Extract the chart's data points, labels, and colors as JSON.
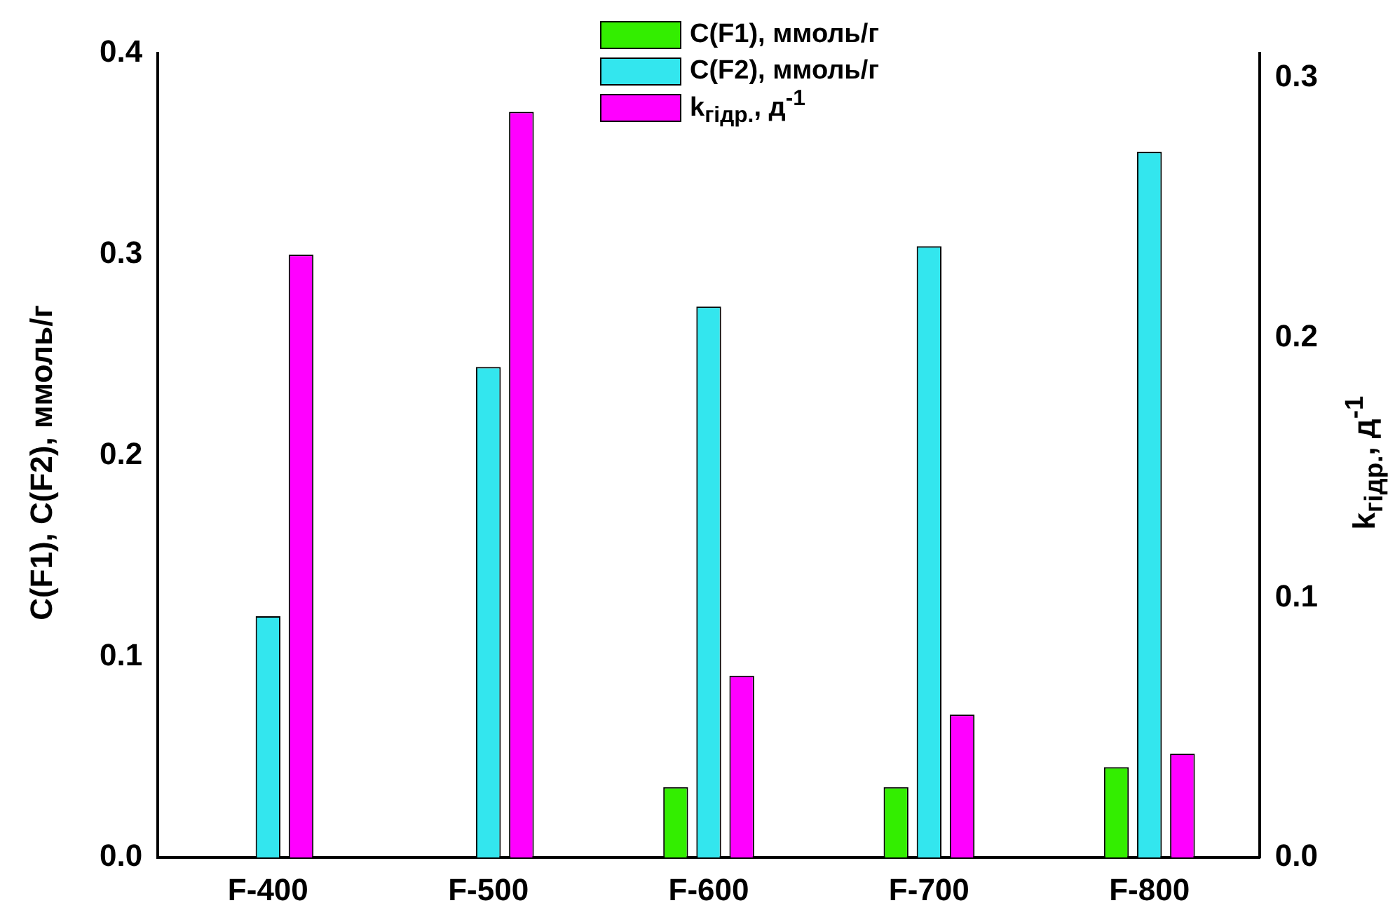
{
  "chart_data": {
    "type": "bar",
    "ylabel": "C(F1), C(F2), ммоль/г",
    "y2label": "k$_{гідр.}$, д$^{-1}$",
    "categories": [
      "F-400",
      "F-500",
      "F-600",
      "F-700",
      "F-800"
    ],
    "series": [
      {
        "name": "C(F1), ммоль/г",
        "color": "#33ee00",
        "values": [
          null,
          null,
          0.035,
          0.035,
          0.045
        ]
      },
      {
        "name": "C(F2), ммоль/г",
        "color": "#33e6ee",
        "values": [
          0.12,
          0.244,
          0.274,
          0.304,
          0.351
        ]
      },
      {
        "name": "k$_{гідр.}$, д$^{-1}$",
        "color": "#ff00ff",
        "axis": "y2",
        "values": [
          0.232,
          0.287,
          0.07,
          0.055,
          0.04
        ]
      }
    ],
    "ylim": [
      0,
      0.4
    ],
    "yticks": [
      {
        "value": 0,
        "label": "0.0"
      },
      0.1,
      0.2,
      0.3,
      0.4
    ],
    "y2lim": [
      0,
      0.3095
    ],
    "y2ticks": [
      {
        "value": 0,
        "label": "0.0"
      },
      0.1,
      0.2,
      0.3
    ],
    "grid": false,
    "legend": "top"
  }
}
